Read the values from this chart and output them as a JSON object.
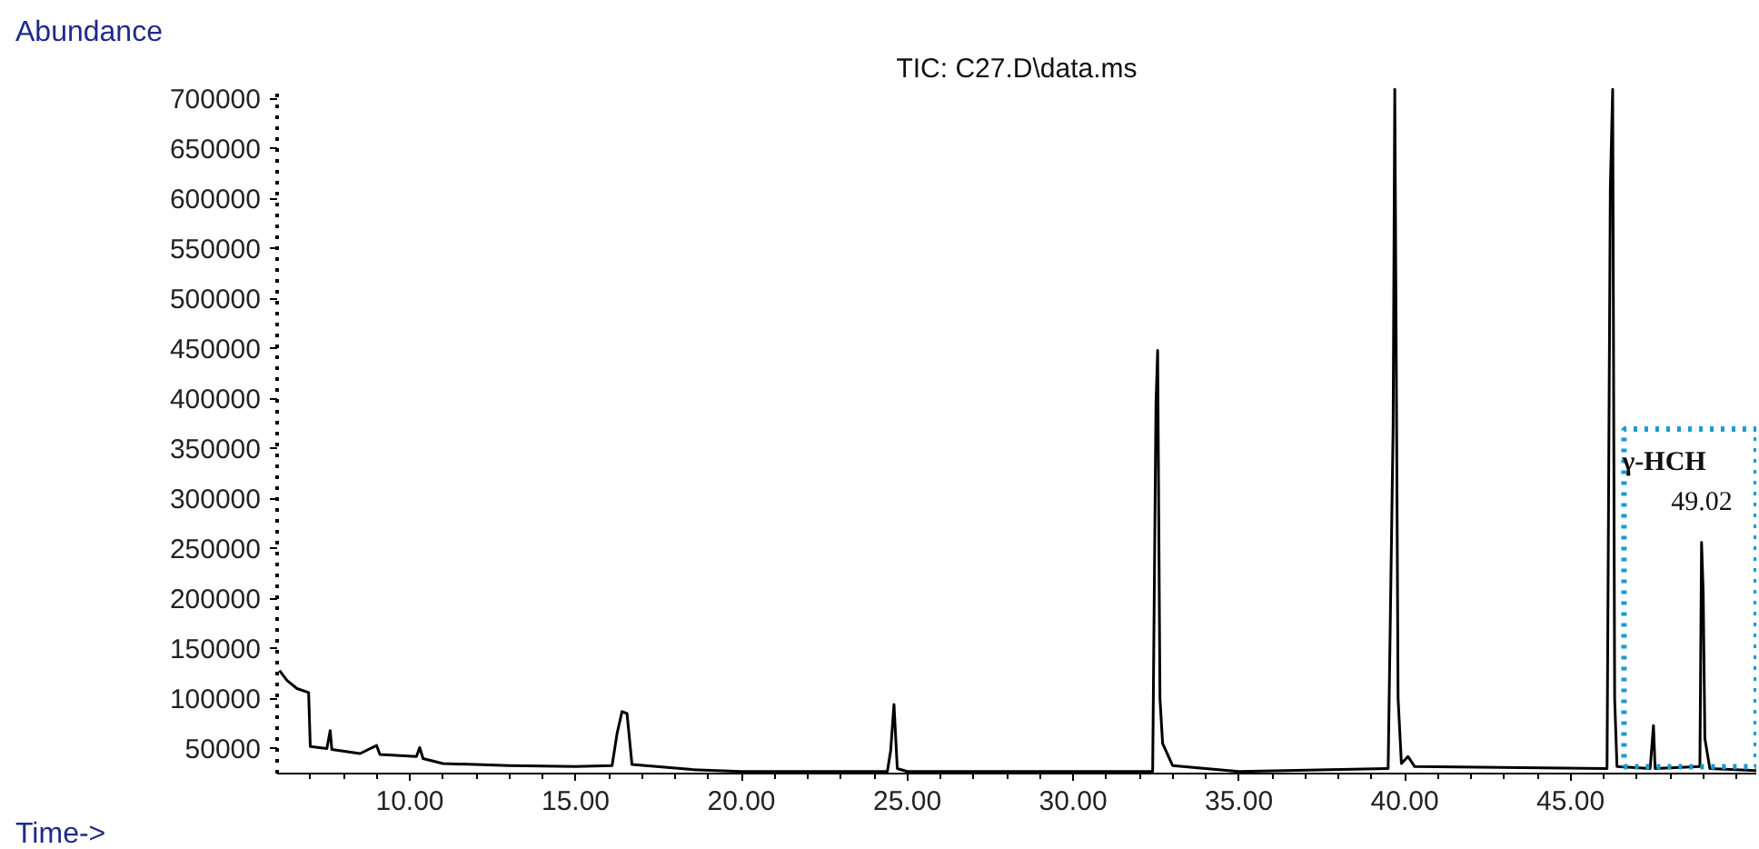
{
  "chart_data": {
    "type": "line",
    "title": "TIC: C27.D\\data.ms",
    "xlabel": "Time->",
    "ylabel": "Abundance",
    "x": [
      6.07,
      6.3,
      6.6,
      6.95,
      7.0,
      7.5,
      7.6,
      7.65,
      8.5,
      9.0,
      9.1,
      10.2,
      10.3,
      10.4,
      11,
      13,
      15,
      16.1,
      16.25,
      16.4,
      16.55,
      16.7,
      18.5,
      20,
      24.4,
      24.5,
      24.6,
      24.7,
      25,
      32.4,
      32.5,
      32.55,
      32.62,
      32.7,
      33,
      35,
      39.5,
      39.65,
      39.7,
      39.8,
      39.9,
      40.1,
      40.3,
      46.1,
      46.2,
      46.27,
      46.33,
      46.4,
      47.4,
      47.5,
      47.55,
      48.9,
      48.95,
      49.0,
      49.05,
      49.2,
      50.6
    ],
    "series": [
      {
        "color": "#000000",
        "values": [
          128000,
          118000,
          110000,
          106000,
          52000,
          50000,
          68000,
          49000,
          45000,
          53000,
          44000,
          42000,
          51000,
          40000,
          35000,
          33000,
          32000,
          33000,
          65000,
          87000,
          85000,
          34000,
          29000,
          27000,
          27000,
          48000,
          94000,
          30000,
          27000,
          27000,
          395000,
          448000,
          100000,
          55000,
          33000,
          27000,
          30000,
          371000,
          709000,
          100000,
          35000,
          42000,
          32000,
          30000,
          611000,
          709000,
          100000,
          32000,
          30000,
          73000,
          30000,
          32000,
          256000,
          206000,
          60000,
          30000,
          28000
        ]
      }
    ],
    "xlim": [
      6.0,
      50.6
    ],
    "ylim": [
      25000,
      712000
    ],
    "xticks": [
      {
        "value": 10,
        "label": "10.00"
      },
      {
        "value": 15,
        "label": "15.00"
      },
      {
        "value": 20,
        "label": "20.00"
      },
      {
        "value": 25,
        "label": "25.00"
      },
      {
        "value": 30,
        "label": "30.00"
      },
      {
        "value": 35,
        "label": "35.00"
      },
      {
        "value": 40,
        "label": "40.00"
      },
      {
        "value": 45,
        "label": "45.00"
      }
    ],
    "yticks": [
      50000,
      100000,
      150000,
      200000,
      250000,
      300000,
      350000,
      400000,
      450000,
      500000,
      550000,
      600000,
      650000,
      700000
    ],
    "annotations": [
      {
        "text": "γ-HCH",
        "x": 49.02,
        "y": 256000
      },
      {
        "text": "49.02",
        "x": 49.02,
        "y": 256000
      }
    ],
    "grid": false,
    "marker": "none",
    "line_style": "solid"
  }
}
